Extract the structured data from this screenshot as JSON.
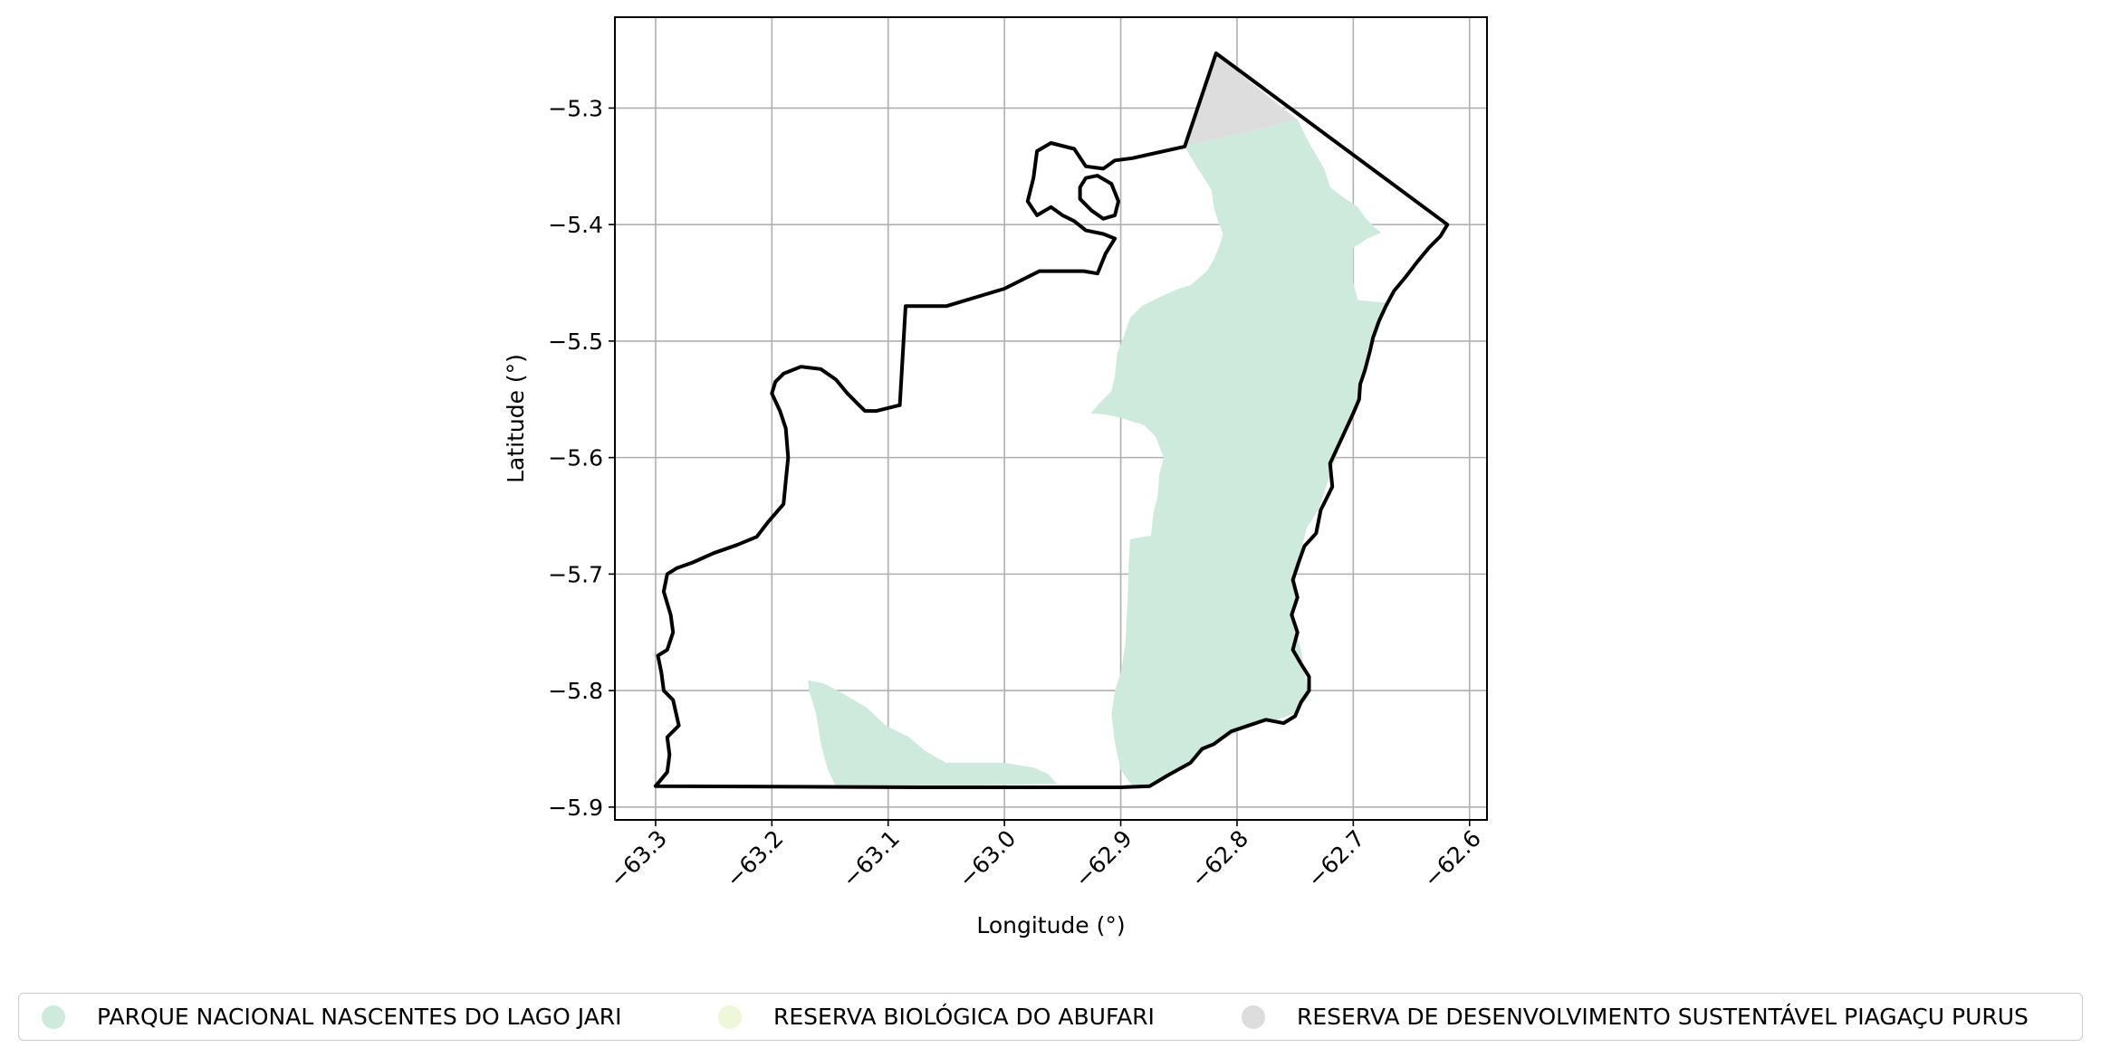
{
  "map": {
    "xlabel": "Longitude (°)",
    "ylabel": "Latitude (°)",
    "xlim": [
      -63.335,
      -62.585
    ],
    "ylim": [
      -5.911,
      -5.222
    ],
    "x_ticks": [
      -63.3,
      -63.2,
      -63.1,
      -63.0,
      -62.9,
      -62.8,
      -62.7,
      -62.6
    ],
    "x_tick_labels": [
      "−63.3",
      "−63.2",
      "−63.1",
      "−63.0",
      "−62.9",
      "−62.8",
      "−62.7",
      "−62.6"
    ],
    "y_ticks": [
      -5.3,
      -5.4,
      -5.5,
      -5.6,
      -5.7,
      -5.8,
      -5.9
    ],
    "y_tick_labels": [
      "−5.3",
      "−5.4",
      "−5.5",
      "−5.6",
      "−5.7",
      "−5.8",
      "−5.9"
    ],
    "grid": true,
    "outline_color": "#000000",
    "areas": [
      {
        "key": "parna",
        "color": "#cdeadd",
        "polygons": [
          [
            [
              -62.845,
              -5.333
            ],
            [
              -62.748,
              -5.31
            ],
            [
              -62.738,
              -5.33
            ],
            [
              -62.725,
              -5.352
            ],
            [
              -62.72,
              -5.368
            ],
            [
              -62.708,
              -5.377
            ],
            [
              -62.696,
              -5.385
            ],
            [
              -62.69,
              -5.394
            ],
            [
              -62.682,
              -5.402
            ],
            [
              -62.676,
              -5.407
            ],
            [
              -62.688,
              -5.412
            ],
            [
              -62.7,
              -5.42
            ],
            [
              -62.7,
              -5.45
            ],
            [
              -62.696,
              -5.465
            ],
            [
              -62.672,
              -5.467
            ],
            [
              -62.675,
              -5.48
            ],
            [
              -62.68,
              -5.495
            ],
            [
              -62.687,
              -5.505
            ],
            [
              -62.69,
              -5.52
            ],
            [
              -62.693,
              -5.54
            ],
            [
              -62.7,
              -5.56
            ],
            [
              -62.705,
              -5.575
            ],
            [
              -62.71,
              -5.585
            ],
            [
              -62.715,
              -5.6
            ],
            [
              -62.725,
              -5.63
            ],
            [
              -62.73,
              -5.645
            ],
            [
              -62.74,
              -5.66
            ],
            [
              -62.745,
              -5.68
            ],
            [
              -62.75,
              -5.7
            ],
            [
              -62.748,
              -5.72
            ],
            [
              -62.752,
              -5.74
            ],
            [
              -62.745,
              -5.765
            ],
            [
              -62.742,
              -5.785
            ],
            [
              -62.738,
              -5.805
            ],
            [
              -62.75,
              -5.82
            ],
            [
              -62.77,
              -5.826
            ],
            [
              -62.79,
              -5.828
            ],
            [
              -62.8,
              -5.836
            ],
            [
              -62.82,
              -5.846
            ],
            [
              -62.84,
              -5.86
            ],
            [
              -62.86,
              -5.872
            ],
            [
              -62.875,
              -5.882
            ],
            [
              -62.89,
              -5.882
            ],
            [
              -62.9,
              -5.868
            ],
            [
              -62.905,
              -5.845
            ],
            [
              -62.908,
              -5.82
            ],
            [
              -62.905,
              -5.8
            ],
            [
              -62.9,
              -5.785
            ],
            [
              -62.896,
              -5.76
            ],
            [
              -62.894,
              -5.72
            ],
            [
              -62.893,
              -5.69
            ],
            [
              -62.892,
              -5.67
            ],
            [
              -62.874,
              -5.667
            ],
            [
              -62.872,
              -5.648
            ],
            [
              -62.868,
              -5.632
            ],
            [
              -62.867,
              -5.615
            ],
            [
              -62.863,
              -5.6
            ],
            [
              -62.87,
              -5.582
            ],
            [
              -62.88,
              -5.572
            ],
            [
              -62.9,
              -5.566
            ],
            [
              -62.913,
              -5.563
            ],
            [
              -62.926,
              -5.562
            ],
            [
              -62.918,
              -5.553
            ],
            [
              -62.908,
              -5.543
            ],
            [
              -62.905,
              -5.53
            ],
            [
              -62.903,
              -5.51
            ],
            [
              -62.897,
              -5.495
            ],
            [
              -62.892,
              -5.48
            ],
            [
              -62.882,
              -5.47
            ],
            [
              -62.866,
              -5.462
            ],
            [
              -62.85,
              -5.455
            ],
            [
              -62.84,
              -5.452
            ],
            [
              -62.826,
              -5.44
            ],
            [
              -62.82,
              -5.43
            ],
            [
              -62.815,
              -5.418
            ],
            [
              -62.812,
              -5.408
            ],
            [
              -62.816,
              -5.398
            ],
            [
              -62.82,
              -5.385
            ],
            [
              -62.822,
              -5.37
            ],
            [
              -62.835,
              -5.35
            ]
          ],
          [
            [
              -63.169,
              -5.791
            ],
            [
              -63.155,
              -5.794
            ],
            [
              -63.138,
              -5.803
            ],
            [
              -63.118,
              -5.815
            ],
            [
              -63.102,
              -5.83
            ],
            [
              -63.082,
              -5.84
            ],
            [
              -63.068,
              -5.852
            ],
            [
              -63.05,
              -5.862
            ],
            [
              -63.03,
              -5.862
            ],
            [
              -63.0,
              -5.862
            ],
            [
              -62.975,
              -5.866
            ],
            [
              -62.962,
              -5.872
            ],
            [
              -62.955,
              -5.88
            ],
            [
              -63.0,
              -5.881
            ],
            [
              -63.05,
              -5.882
            ],
            [
              -63.1,
              -5.882
            ],
            [
              -63.145,
              -5.882
            ],
            [
              -63.152,
              -5.868
            ],
            [
              -63.158,
              -5.845
            ],
            [
              -63.162,
              -5.82
            ],
            [
              -63.168,
              -5.8
            ]
          ]
        ]
      },
      {
        "key": "rds",
        "color": "#dddddd",
        "polygons": [
          [
            [
              -62.845,
              -5.333
            ],
            [
              -62.818,
              -5.254
            ],
            [
              -62.748,
              -5.31
            ]
          ]
        ]
      }
    ],
    "outline": [
      [
        -63.3,
        -5.882
      ],
      [
        -63.065,
        -5.883
      ],
      [
        -62.9,
        -5.883
      ],
      [
        -62.875,
        -5.882
      ],
      [
        -62.86,
        -5.873
      ],
      [
        -62.84,
        -5.862
      ],
      [
        -62.83,
        -5.85
      ],
      [
        -62.82,
        -5.846
      ],
      [
        -62.805,
        -5.835
      ],
      [
        -62.79,
        -5.83
      ],
      [
        -62.775,
        -5.825
      ],
      [
        -62.76,
        -5.828
      ],
      [
        -62.75,
        -5.822
      ],
      [
        -62.745,
        -5.81
      ],
      [
        -62.738,
        -5.8
      ],
      [
        -62.738,
        -5.788
      ],
      [
        -62.745,
        -5.777
      ],
      [
        -62.752,
        -5.765
      ],
      [
        -62.748,
        -5.75
      ],
      [
        -62.753,
        -5.735
      ],
      [
        -62.748,
        -5.72
      ],
      [
        -62.752,
        -5.705
      ],
      [
        -62.747,
        -5.69
      ],
      [
        -62.742,
        -5.676
      ],
      [
        -62.732,
        -5.665
      ],
      [
        -62.728,
        -5.645
      ],
      [
        -62.718,
        -5.625
      ],
      [
        -62.72,
        -5.605
      ],
      [
        -62.712,
        -5.588
      ],
      [
        -62.706,
        -5.575
      ],
      [
        -62.7,
        -5.562
      ],
      [
        -62.695,
        -5.55
      ],
      [
        -62.694,
        -5.537
      ],
      [
        -62.69,
        -5.525
      ],
      [
        -62.686,
        -5.51
      ],
      [
        -62.683,
        -5.497
      ],
      [
        -62.678,
        -5.483
      ],
      [
        -62.672,
        -5.47
      ],
      [
        -62.665,
        -5.457
      ],
      [
        -62.655,
        -5.445
      ],
      [
        -62.645,
        -5.432
      ],
      [
        -62.635,
        -5.42
      ],
      [
        -62.625,
        -5.41
      ],
      [
        -62.619,
        -5.4
      ],
      [
        -62.818,
        -5.253
      ],
      [
        -62.845,
        -5.333
      ],
      [
        -62.89,
        -5.343
      ],
      [
        -62.905,
        -5.345
      ],
      [
        -62.915,
        -5.352
      ],
      [
        -62.93,
        -5.35
      ],
      [
        -62.94,
        -5.335
      ],
      [
        -62.96,
        -5.33
      ],
      [
        -62.972,
        -5.337
      ],
      [
        -62.975,
        -5.36
      ],
      [
        -62.98,
        -5.38
      ],
      [
        -62.972,
        -5.392
      ],
      [
        -62.96,
        -5.385
      ],
      [
        -62.95,
        -5.392
      ],
      [
        -62.94,
        -5.397
      ],
      [
        -62.93,
        -5.405
      ],
      [
        -62.915,
        -5.408
      ],
      [
        -62.905,
        -5.412
      ],
      [
        -62.913,
        -5.425
      ],
      [
        -62.92,
        -5.442
      ],
      [
        -62.932,
        -5.44
      ],
      [
        -62.97,
        -5.44
      ],
      [
        -63.0,
        -5.455
      ],
      [
        -63.05,
        -5.47
      ],
      [
        -63.085,
        -5.47
      ],
      [
        -63.09,
        -5.555
      ],
      [
        -63.11,
        -5.56
      ],
      [
        -63.12,
        -5.56
      ],
      [
        -63.125,
        -5.555
      ],
      [
        -63.135,
        -5.545
      ],
      [
        -63.145,
        -5.533
      ],
      [
        -63.158,
        -5.524
      ],
      [
        -63.175,
        -5.522
      ],
      [
        -63.19,
        -5.528
      ],
      [
        -63.197,
        -5.535
      ],
      [
        -63.2,
        -5.545
      ],
      [
        -63.193,
        -5.56
      ],
      [
        -63.188,
        -5.575
      ],
      [
        -63.186,
        -5.6
      ],
      [
        -63.188,
        -5.62
      ],
      [
        -63.19,
        -5.64
      ],
      [
        -63.203,
        -5.655
      ],
      [
        -63.213,
        -5.668
      ],
      [
        -63.23,
        -5.675
      ],
      [
        -63.25,
        -5.682
      ],
      [
        -63.268,
        -5.69
      ],
      [
        -63.282,
        -5.695
      ],
      [
        -63.29,
        -5.7
      ],
      [
        -63.293,
        -5.715
      ],
      [
        -63.287,
        -5.735
      ],
      [
        -63.285,
        -5.75
      ],
      [
        -63.29,
        -5.765
      ],
      [
        -63.298,
        -5.77
      ],
      [
        -63.295,
        -5.785
      ],
      [
        -63.293,
        -5.8
      ],
      [
        -63.285,
        -5.808
      ],
      [
        -63.28,
        -5.83
      ],
      [
        -63.29,
        -5.84
      ],
      [
        -63.288,
        -5.855
      ],
      [
        -63.29,
        -5.87
      ],
      [
        -63.3,
        -5.882
      ]
    ]
  },
  "legend": {
    "items": [
      {
        "label": "PARQUE NACIONAL NASCENTES DO LAGO JARI",
        "color": "#cdeadd"
      },
      {
        "label": "RESERVA BIOLÓGICA DO ABUFARI",
        "color": "#eef7d9"
      },
      {
        "label": "RESERVA DE DESENVOLVIMENTO SUSTENTÁVEL PIAGAÇU PURUS",
        "color": "#dddddd"
      }
    ]
  }
}
